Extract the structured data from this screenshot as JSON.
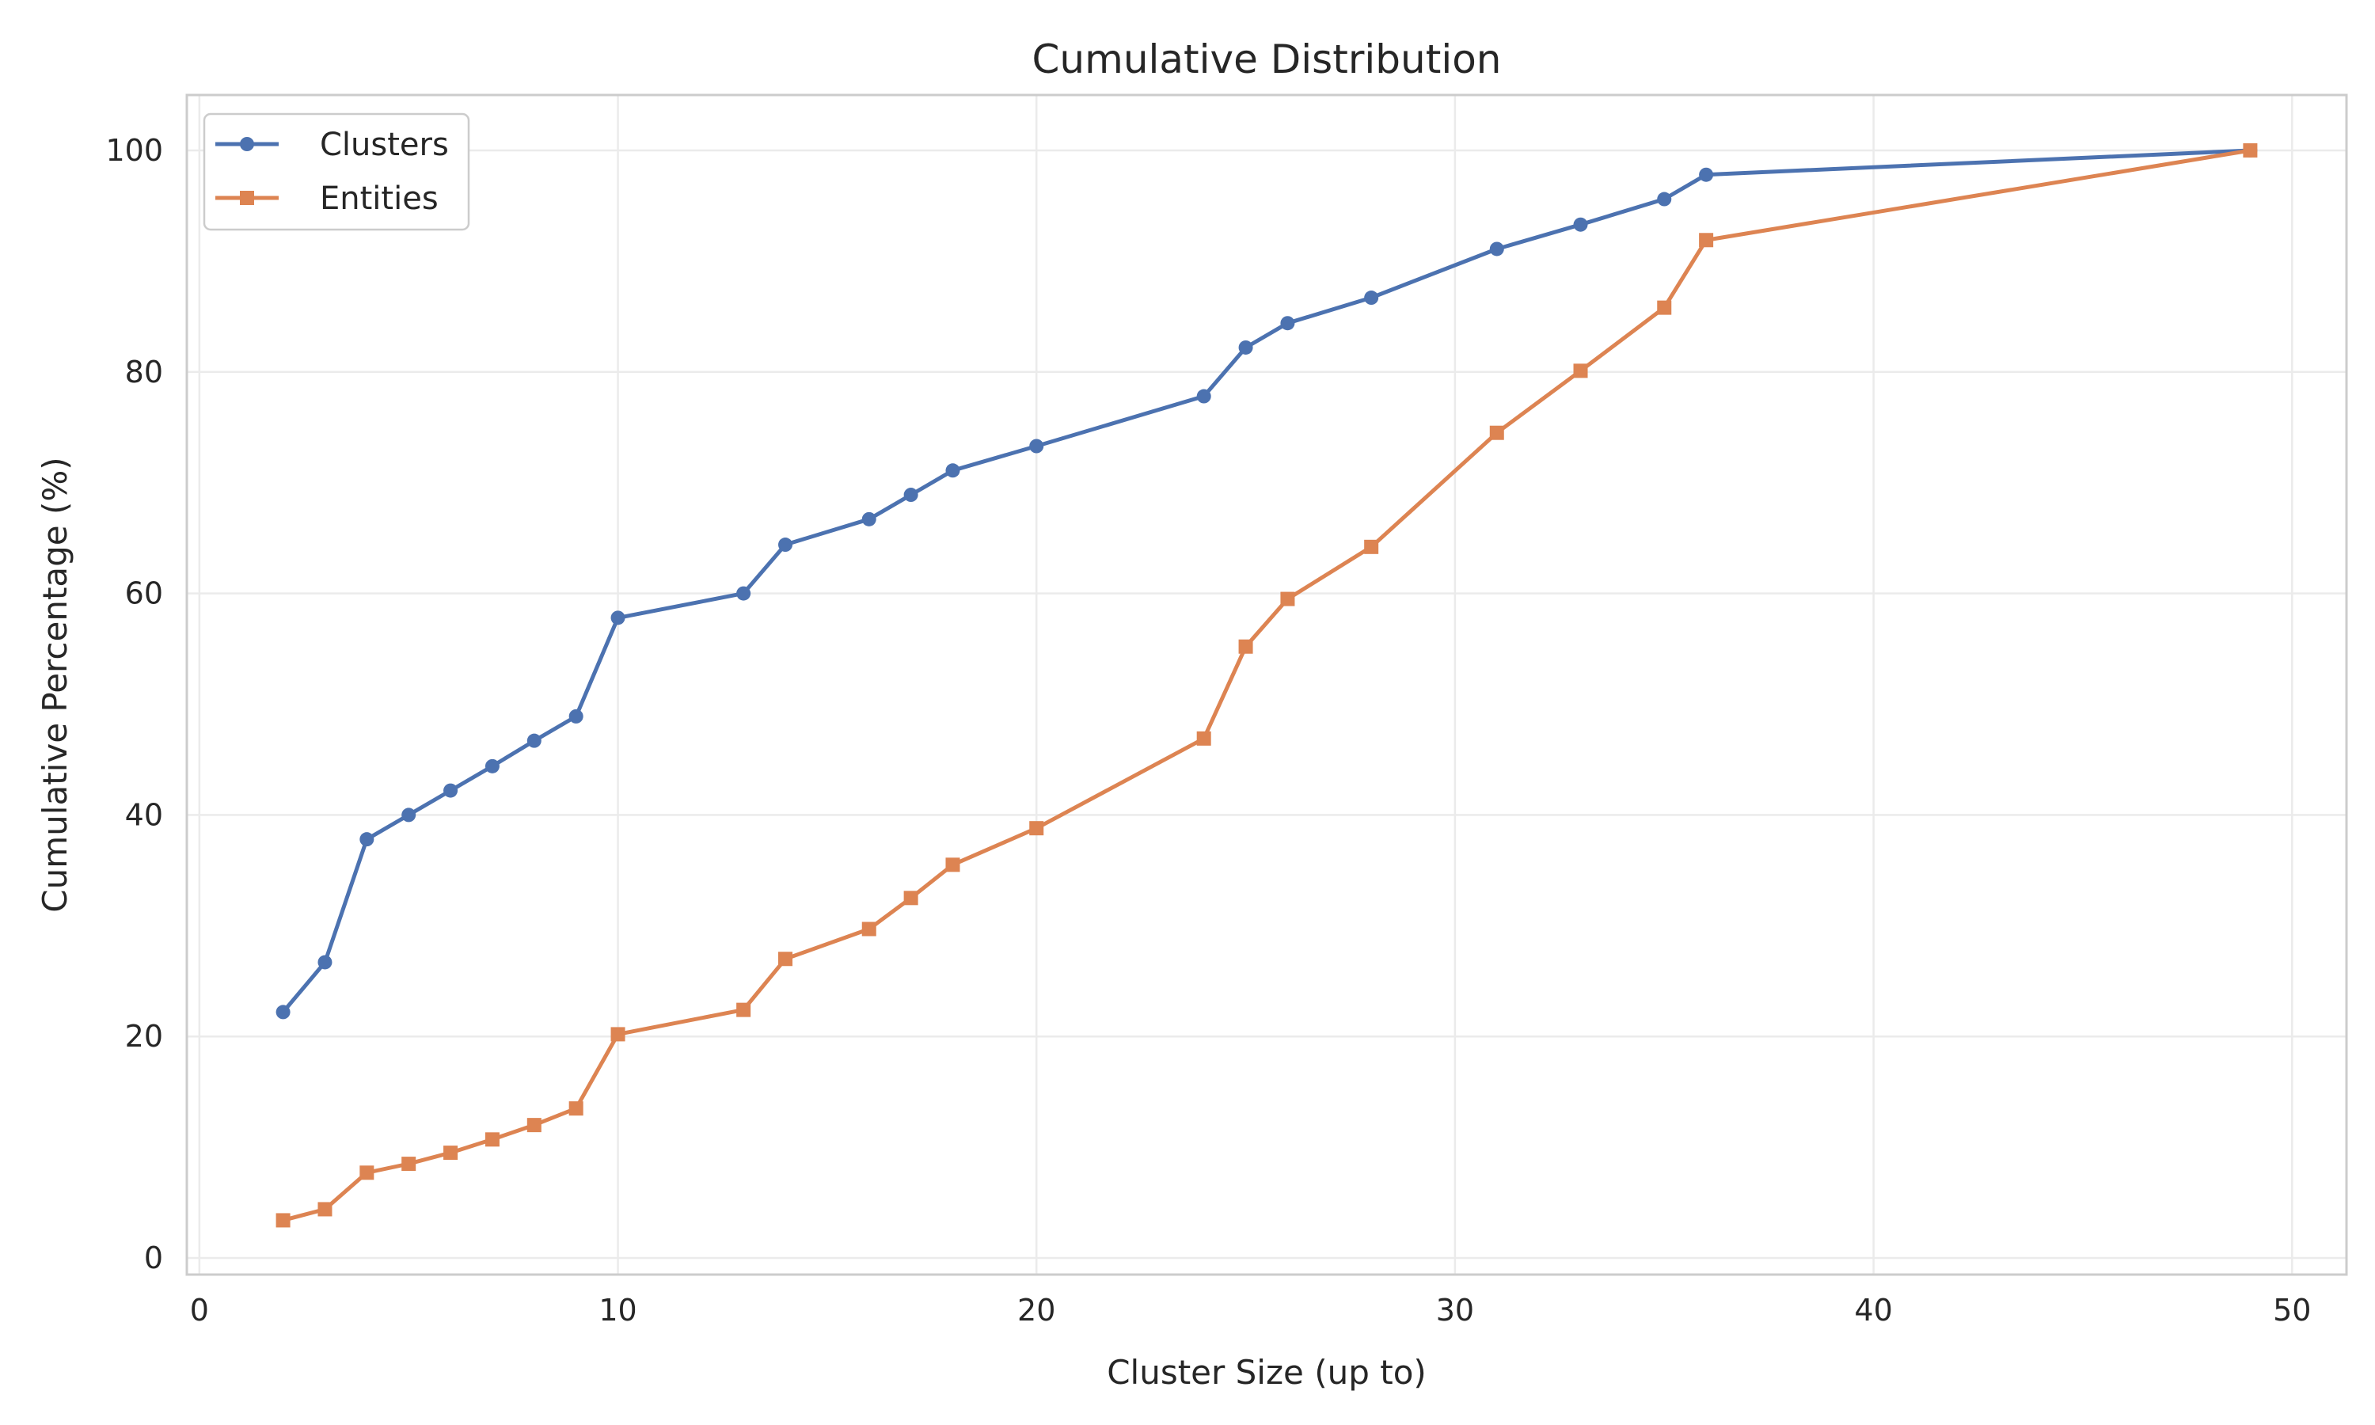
{
  "chart_data": {
    "type": "line",
    "title": "Cumulative Distribution",
    "xlabel": "Cluster Size (up to)",
    "ylabel": "Cumulative Percentage (%)",
    "xlim": [
      -0.3,
      51.3
    ],
    "ylim": [
      -1.5,
      105
    ],
    "xticks": [
      0,
      10,
      20,
      30,
      40,
      50
    ],
    "yticks": [
      0,
      20,
      40,
      60,
      80,
      100
    ],
    "grid": true,
    "legend_position": "top-left",
    "series": [
      {
        "name": "Clusters",
        "color": "#4c72b0",
        "marker": "circle",
        "x": [
          2,
          3,
          4,
          5,
          6,
          7,
          8,
          9,
          10,
          13,
          14,
          16,
          17,
          18,
          20,
          24,
          25,
          26,
          28,
          31,
          33,
          35,
          36,
          49
        ],
        "y": [
          22.2,
          26.7,
          37.8,
          40.0,
          42.2,
          44.4,
          46.7,
          48.9,
          57.8,
          60.0,
          64.4,
          66.7,
          68.9,
          71.1,
          73.3,
          77.8,
          82.2,
          84.4,
          86.7,
          91.1,
          93.3,
          95.6,
          97.8,
          100
        ]
      },
      {
        "name": "Entities",
        "color": "#dd8452",
        "marker": "square",
        "x": [
          2,
          3,
          4,
          5,
          6,
          7,
          8,
          9,
          10,
          13,
          14,
          16,
          17,
          18,
          20,
          24,
          25,
          26,
          28,
          31,
          33,
          35,
          36,
          49
        ],
        "y": [
          3.4,
          4.4,
          7.7,
          8.5,
          9.5,
          10.7,
          12.0,
          13.5,
          20.2,
          22.4,
          27.0,
          29.7,
          32.5,
          35.5,
          38.8,
          46.9,
          55.2,
          59.5,
          64.2,
          74.5,
          80.1,
          85.8,
          91.9,
          100
        ]
      }
    ]
  }
}
